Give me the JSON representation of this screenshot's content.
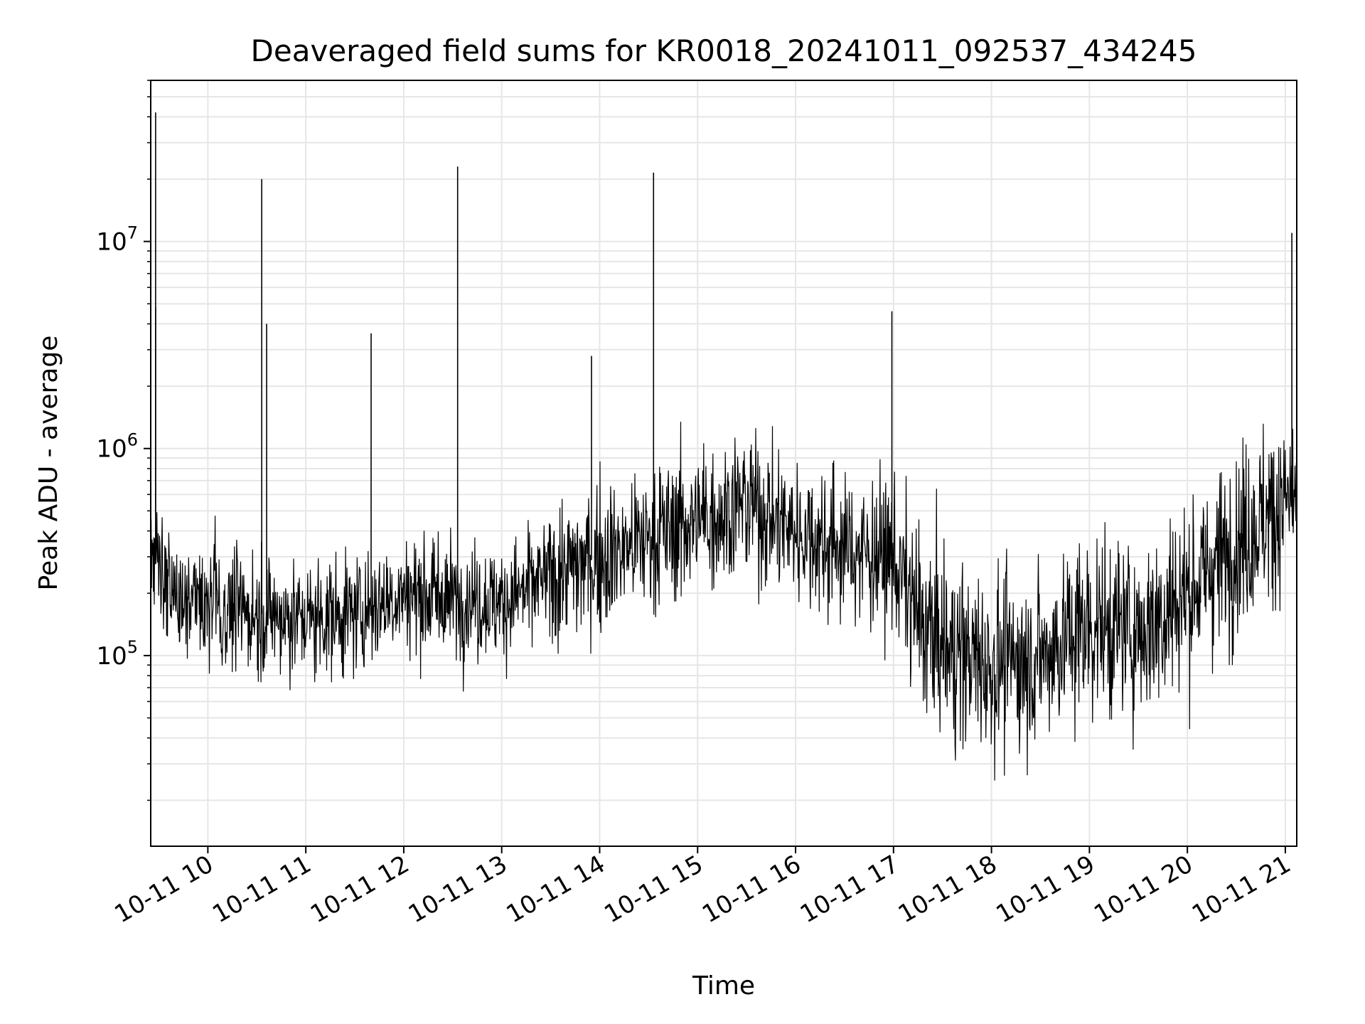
{
  "chart_data": {
    "type": "line",
    "title": "Deaveraged field sums for KR0018_20241011_092537_434245",
    "xlabel": "Time",
    "ylabel": "Peak ADU - average",
    "x_ticks": [
      "10-11 10",
      "10-11 11",
      "10-11 12",
      "10-11 13",
      "10-11 14",
      "10-11 15",
      "10-11 16",
      "10-11 17",
      "10-11 18",
      "10-11 19",
      "10-11 20",
      "10-11 21"
    ],
    "y_ticks": [
      {
        "base": "10",
        "exp": "5",
        "value": 100000
      },
      {
        "base": "10",
        "exp": "6",
        "value": 1000000
      },
      {
        "base": "10",
        "exp": "7",
        "value": 10000000
      }
    ],
    "xlim": [
      "2024-10-11 09:25",
      "2024-10-11 21:07"
    ],
    "ylim": [
      12000,
      60000000
    ],
    "y_scale": "log",
    "grid": true,
    "line_color": "#000000",
    "grid_color": "#e6e6e6",
    "series": [
      {
        "x": [
          "2024-10-11 09:25",
          "2024-10-11 09:40",
          "2024-10-11 10:00",
          "2024-10-11 10:30",
          "2024-10-11 11:00",
          "2024-10-11 11:30",
          "2024-10-11 12:00",
          "2024-10-11 12:30",
          "2024-10-11 13:00",
          "2024-10-11 13:30",
          "2024-10-11 14:00",
          "2024-10-11 14:30",
          "2024-10-11 15:00",
          "2024-10-11 15:30",
          "2024-10-11 16:00",
          "2024-10-11 16:30",
          "2024-10-11 17:00",
          "2024-10-11 17:15",
          "2024-10-11 17:30",
          "2024-10-11 18:00",
          "2024-10-11 18:30",
          "2024-10-11 19:00",
          "2024-10-11 19:30",
          "2024-10-11 20:00",
          "2024-10-11 20:30",
          "2024-10-11 21:00",
          "2024-10-11 21:07"
        ],
        "values": [
          300000,
          200000,
          170000,
          160000,
          150000,
          160000,
          200000,
          190000,
          180000,
          240000,
          300000,
          370000,
          450000,
          550000,
          400000,
          330000,
          300000,
          150000,
          110000,
          90000,
          100000,
          140000,
          130000,
          200000,
          350000,
          550000,
          600000
        ]
      }
    ],
    "spikes": [
      {
        "x": "2024-10-11 09:28",
        "y": 42000000
      },
      {
        "x": "2024-10-11 09:28",
        "y": 4800000
      },
      {
        "x": "2024-10-11 10:33",
        "y": 20000000
      },
      {
        "x": "2024-10-11 10:36",
        "y": 4000000
      },
      {
        "x": "2024-10-11 11:40",
        "y": 3600000
      },
      {
        "x": "2024-10-11 12:33",
        "y": 23000000
      },
      {
        "x": "2024-10-11 13:55",
        "y": 2800000
      },
      {
        "x": "2024-10-11 14:33",
        "y": 21500000
      },
      {
        "x": "2024-10-11 16:59",
        "y": 4600000
      },
      {
        "x": "2024-10-11 21:04",
        "y": 11000000
      }
    ]
  }
}
